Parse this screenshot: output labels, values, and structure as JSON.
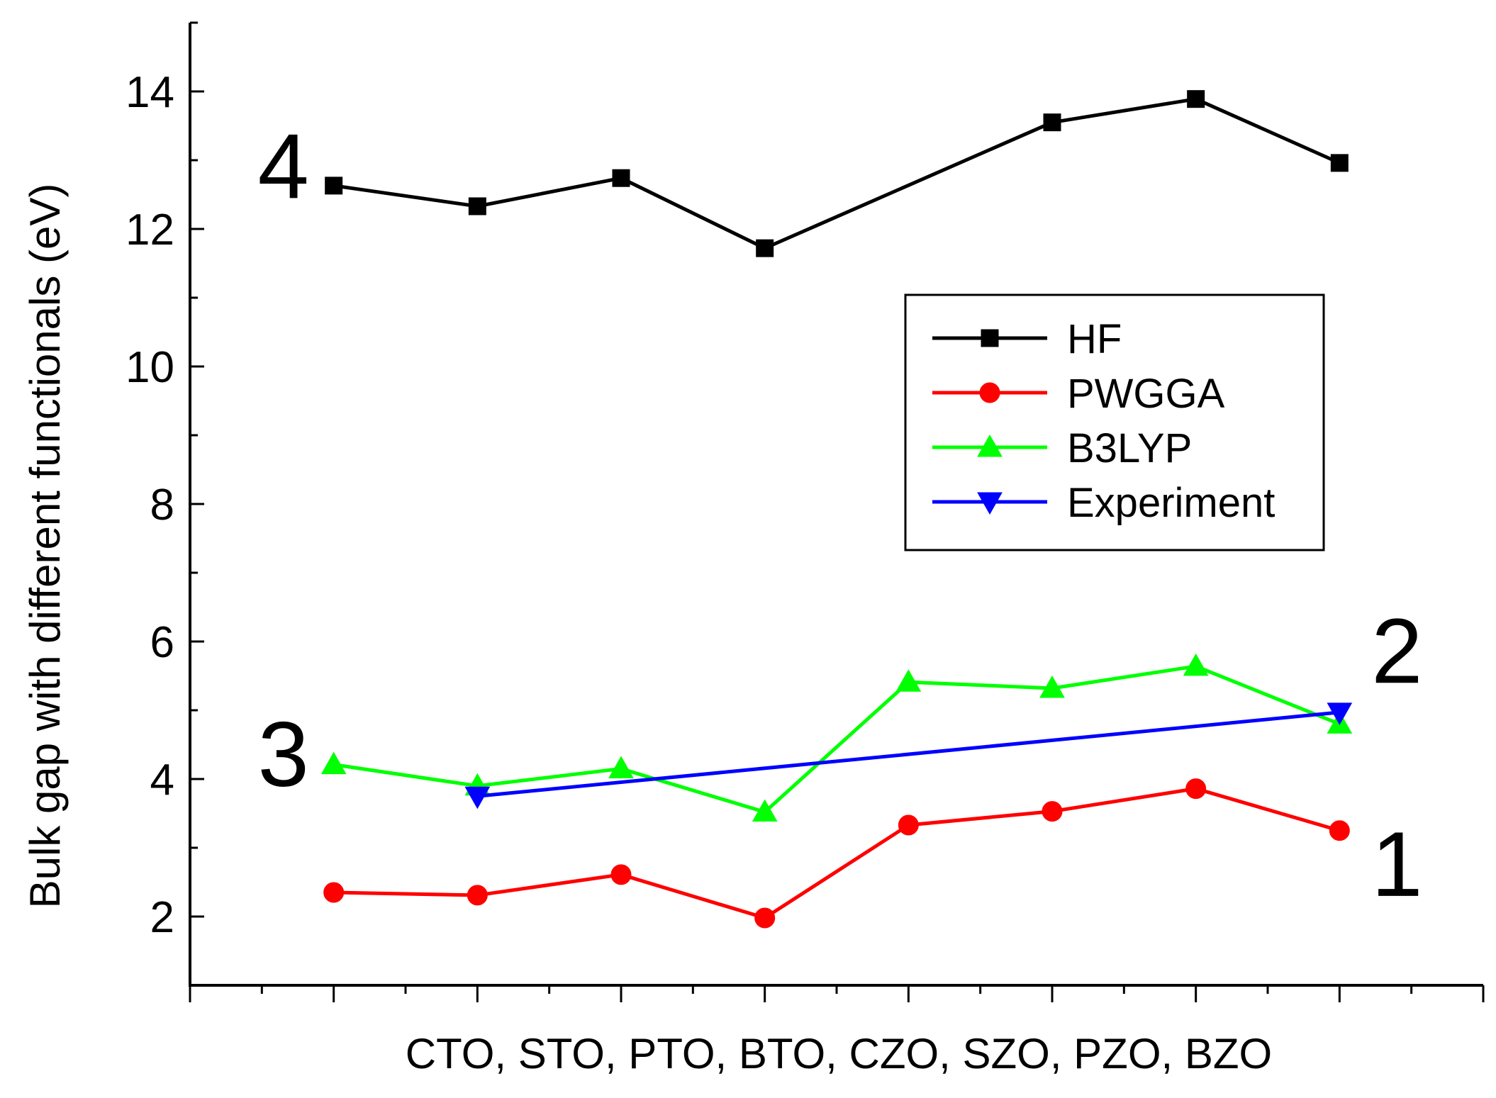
{
  "chart_data": {
    "type": "line",
    "title": "",
    "xlabel": "CTO, STO, PTO, BTO, CZO, SZO, PZO, BZO",
    "ylabel": "Bulk gap with different functionals (eV)",
    "categories": [
      "CTO",
      "STO",
      "PTO",
      "BTO",
      "CZO",
      "SZO",
      "PZO",
      "BZO"
    ],
    "x_tick_labels_shown": false,
    "xlim": [
      0,
      9
    ],
    "ylim": [
      1,
      15
    ],
    "yticks": [
      2,
      4,
      6,
      8,
      10,
      12,
      14
    ],
    "grid": false,
    "legend_position": "center-right",
    "series": [
      {
        "name": "HF",
        "color": "#000000",
        "marker": "square",
        "x": [
          1,
          2,
          3,
          4,
          6,
          7,
          8
        ],
        "values": [
          12.63,
          12.33,
          12.74,
          11.72,
          13.55,
          13.89,
          12.96
        ]
      },
      {
        "name": "PWGGA",
        "color": "#ff0000",
        "marker": "circle",
        "x": [
          1,
          2,
          3,
          4,
          5,
          6,
          7,
          8
        ],
        "values": [
          2.35,
          2.31,
          2.61,
          1.98,
          3.33,
          3.53,
          3.86,
          3.25
        ]
      },
      {
        "name": "B3LYP",
        "color": "#00ff00",
        "marker": "triangle-up",
        "x": [
          1,
          2,
          3,
          4,
          5,
          6,
          7,
          8
        ],
        "values": [
          4.21,
          3.9,
          4.15,
          3.52,
          5.41,
          5.32,
          5.64,
          4.8
        ]
      },
      {
        "name": "Experiment",
        "color": "#0000ff",
        "marker": "triangle-down",
        "x": [
          2,
          8
        ],
        "values": [
          3.75,
          4.97
        ]
      }
    ],
    "annotations": [
      {
        "text": "4",
        "x": 0.65,
        "y": 12.45
      },
      {
        "text": "3",
        "x": 0.65,
        "y": 3.9
      },
      {
        "text": "2",
        "x": 8.4,
        "y": 5.4
      },
      {
        "text": "1",
        "x": 8.4,
        "y": 2.3
      }
    ]
  }
}
